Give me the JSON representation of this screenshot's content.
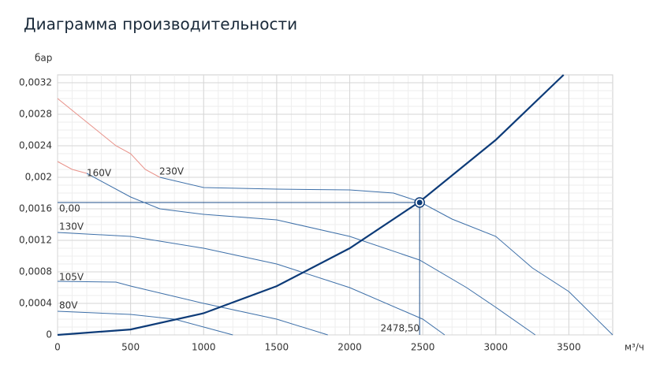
{
  "chart_data": {
    "type": "line",
    "title": "Диаграмма производительности",
    "ylabel": "бар",
    "xlabel": "м³/ч",
    "xlim": [
      0,
      3800
    ],
    "ylim": [
      0,
      0.0033
    ],
    "xticks": [
      0,
      500,
      1000,
      1500,
      2000,
      2500,
      3000,
      3500
    ],
    "yticks": [
      0,
      {
        "value": 0.0004,
        "label": "0,0004"
      },
      {
        "value": 0.0008,
        "label": "0,0008"
      },
      {
        "value": 0.0012,
        "label": "0,0012"
      },
      {
        "value": 0.0016,
        "label": "0,0016"
      },
      {
        "value": 0.002,
        "label": "0,002"
      },
      {
        "value": 0.0024,
        "label": "0,0024"
      },
      {
        "value": 0.0028,
        "label": "0,0028"
      },
      {
        "value": 0.0032,
        "label": "0,0032"
      }
    ],
    "grid": true,
    "series": [
      {
        "color": "#e8928a",
        "x": [
          0,
          200,
          400,
          500,
          600,
          700
        ],
        "values": [
          0.003,
          0.0027,
          0.0024,
          0.0023,
          0.0021,
          0.002
        ]
      },
      {
        "name": "230V",
        "color": "#3d6fa8",
        "x": [
          700,
          1000,
          1500,
          2000,
          2300,
          2478.5,
          2700,
          3000,
          3250,
          3500,
          3800
        ],
        "values": [
          0.002,
          0.00187,
          0.00185,
          0.00184,
          0.0018,
          0.00169,
          0.00147,
          0.00125,
          0.00085,
          0.00055,
          0
        ]
      },
      {
        "color": "#e8928a",
        "x": [
          0,
          100,
          200
        ],
        "values": [
          0.0022,
          0.0021,
          0.00205
        ]
      },
      {
        "name": "160V",
        "color": "#3d6fa8",
        "x": [
          200,
          500,
          700,
          1000,
          1500,
          2000,
          2478.5,
          2800,
          3000,
          3270
        ],
        "values": [
          0.00205,
          0.00175,
          0.0016,
          0.00153,
          0.00146,
          0.00125,
          0.00095,
          0.0006,
          0.00035,
          0
        ]
      },
      {
        "name": "130V",
        "color": "#3d6fa8",
        "x": [
          0,
          500,
          1000,
          1500,
          2000,
          2500,
          2650
        ],
        "values": [
          0.0013,
          0.00125,
          0.0011,
          0.0009,
          0.0006,
          0.0002,
          0
        ]
      },
      {
        "name": "105V",
        "color": "#3d6fa8",
        "x": [
          0,
          400,
          500,
          1000,
          1500,
          1850
        ],
        "values": [
          0.00068,
          0.00067,
          0.00062,
          0.0004,
          0.0002,
          0
        ]
      },
      {
        "name": "80V",
        "color": "#3d6fa8",
        "x": [
          0,
          500,
          800,
          1000,
          1200
        ],
        "values": [
          0.0003,
          0.00026,
          0.0002,
          0.0001,
          0
        ]
      },
      {
        "color": "#0d3b78",
        "x": [
          0,
          500,
          1000,
          1500,
          2000,
          2478.5,
          3000,
          3464
        ],
        "values": [
          0,
          6.88e-05,
          0.000275,
          0.000619,
          0.0011,
          0.00169,
          0.002475,
          0.0033
        ]
      }
    ],
    "operating_point": {
      "x": 2478.5,
      "y": 0.00168,
      "x_label": "2478,50",
      "y_label": "0,00"
    }
  }
}
